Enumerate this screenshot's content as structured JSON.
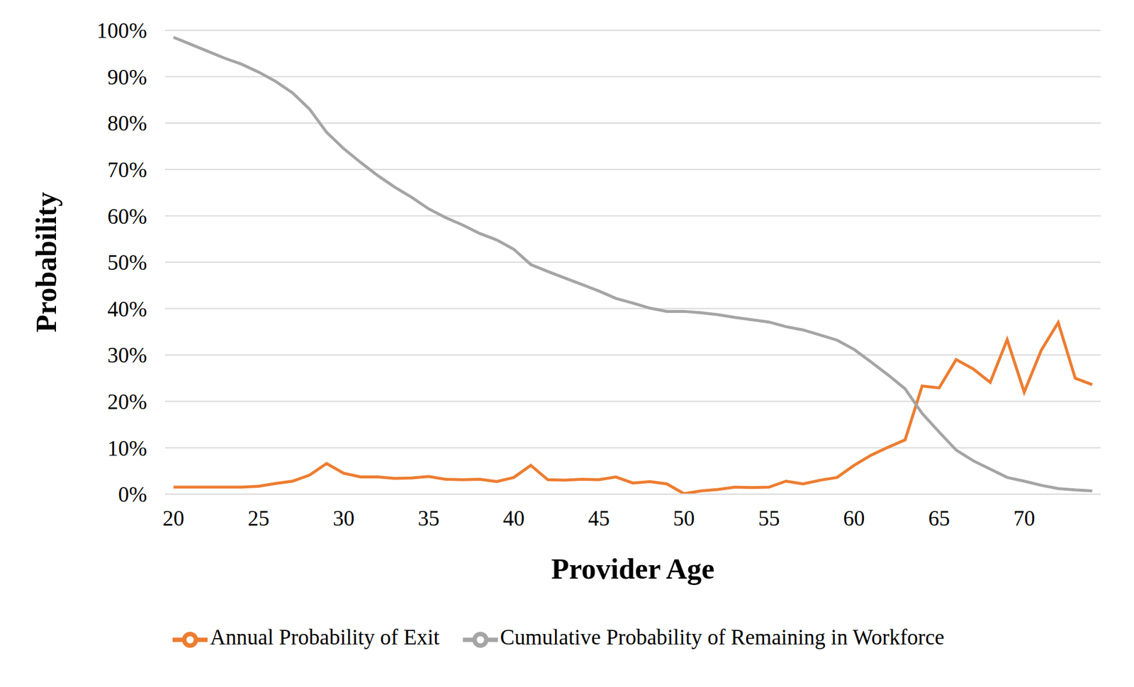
{
  "chart_data": {
    "type": "line",
    "x_label": "Provider Age",
    "y_label": "Probability",
    "x": [
      20,
      21,
      22,
      23,
      24,
      25,
      26,
      27,
      28,
      29,
      30,
      31,
      32,
      33,
      34,
      35,
      36,
      37,
      38,
      39,
      40,
      41,
      42,
      43,
      44,
      45,
      46,
      47,
      48,
      49,
      50,
      51,
      52,
      53,
      54,
      55,
      56,
      57,
      58,
      59,
      60,
      61,
      62,
      63,
      64,
      65,
      66,
      67,
      68,
      69,
      70,
      71,
      72,
      73,
      74
    ],
    "series": [
      {
        "name": "Annual Probability of Exit",
        "color": "#ed7d31",
        "marker": "none",
        "values": [
          1.5,
          1.5,
          1.5,
          1.5,
          1.5,
          1.7,
          2.3,
          2.8,
          4.1,
          6.6,
          4.5,
          3.7,
          3.7,
          3.4,
          3.5,
          3.8,
          3.2,
          3.1,
          3.2,
          2.7,
          3.6,
          6.2,
          3.1,
          3.0,
          3.2,
          3.1,
          3.7,
          2.4,
          2.7,
          2.2,
          0.1,
          0.7,
          1.0,
          1.5,
          1.4,
          1.5,
          2.8,
          2.2,
          3.0,
          3.6,
          6.2,
          8.4,
          10.1,
          11.7,
          23.3,
          22.9,
          29,
          27,
          24.1,
          33.3,
          22,
          31,
          37,
          25,
          23.6
        ]
      },
      {
        "name": "Cumulative Probability of Remaining in Workforce",
        "color": "#a5a5a5",
        "marker": "none",
        "values": [
          98.5,
          97,
          95.5,
          94,
          92.7,
          91,
          89,
          86.5,
          83,
          78,
          74.5,
          71.5,
          68.7,
          66.2,
          64,
          61.5,
          59.6,
          58,
          56.2,
          54.8,
          52.8,
          49.5,
          48,
          46.6,
          45.2,
          43.8,
          42.2,
          41.2,
          40.1,
          39.4,
          39.4,
          39.1,
          38.7,
          38.1,
          37.6,
          37.1,
          36.1,
          35.4,
          34.3,
          33.2,
          31.2,
          28.5,
          25.7,
          22.7,
          17.4,
          13.4,
          9.5,
          7.2,
          5.4,
          3.6,
          2.8,
          1.9,
          1.2,
          0.9,
          0.7
        ]
      }
    ],
    "xlim": [
      19.5,
      74.5
    ],
    "xticks": [
      20,
      25,
      30,
      35,
      40,
      45,
      50,
      55,
      60,
      65,
      70
    ],
    "ylim": [
      0,
      100
    ],
    "yticks": [
      {
        "value": 0,
        "label": "0%"
      },
      {
        "value": 10,
        "label": "10%"
      },
      {
        "value": 20,
        "label": "20%"
      },
      {
        "value": 30,
        "label": "30%"
      },
      {
        "value": 40,
        "label": "40%"
      },
      {
        "value": 50,
        "label": "50%"
      },
      {
        "value": 60,
        "label": "60%"
      },
      {
        "value": 70,
        "label": "70%"
      },
      {
        "value": 80,
        "label": "80%"
      },
      {
        "value": 90,
        "label": "90%"
      },
      {
        "value": 100,
        "label": "100%"
      }
    ],
    "grid": true,
    "legend": "bottom"
  }
}
